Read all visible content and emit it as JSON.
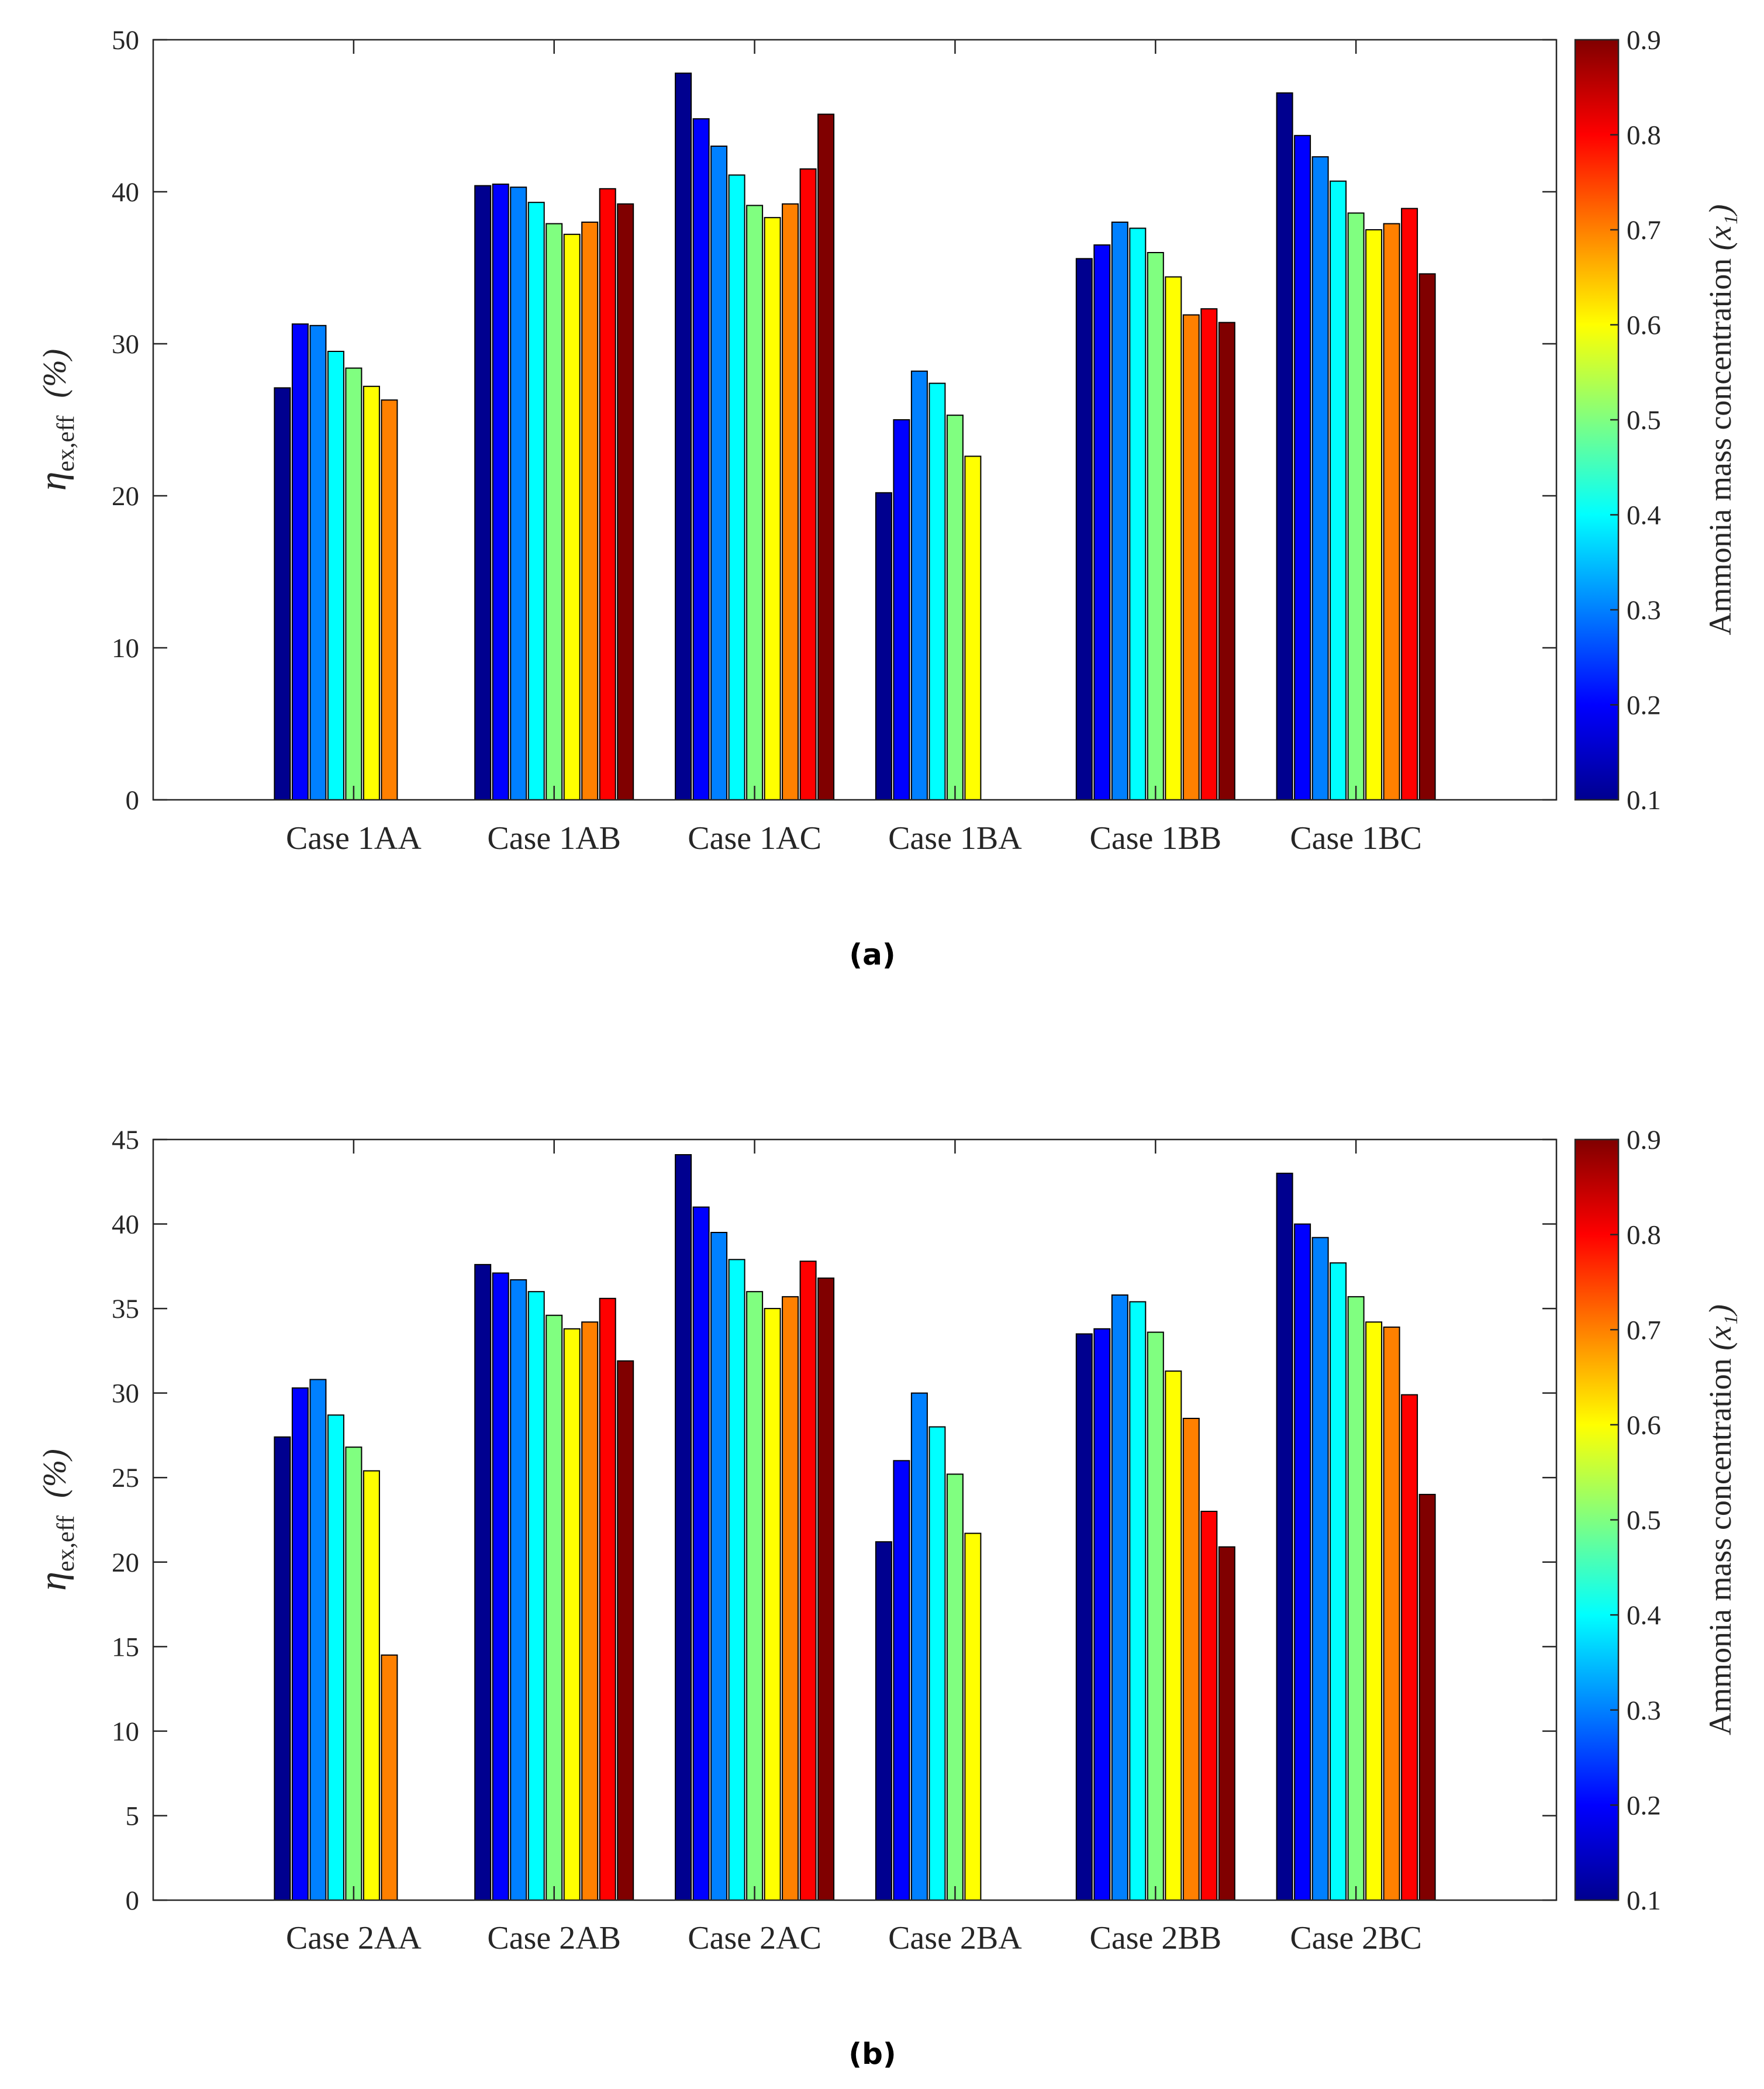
{
  "colormap": {
    "name": "jet",
    "stops": [
      "#00008f",
      "#0000ff",
      "#0080ff",
      "#00ffff",
      "#80ff80",
      "#ffff00",
      "#ff8000",
      "#ff0000",
      "#800000"
    ]
  },
  "chart_data": [
    {
      "type": "bar",
      "panel_label": "(a)",
      "ylabel_symbol": "η",
      "ylabel_subscript": "ex,eff",
      "ylabel_unit": "(%)",
      "ylim": [
        0,
        50
      ],
      "yticks": [
        0,
        10,
        20,
        30,
        40,
        50
      ],
      "categories": [
        "Case 1AA",
        "Case 1AB",
        "Case 1AC",
        "Case 1BA",
        "Case 1BB",
        "Case 1BC"
      ],
      "colorbar": {
        "label": "Ammonia mass concentration",
        "label_symbol": "(x₁)",
        "range": [
          0.1,
          0.9
        ],
        "ticks": [
          "0.1",
          "0.2",
          "0.3",
          "0.4",
          "0.5",
          "0.6",
          "0.7",
          "0.8",
          "0.9"
        ]
      },
      "series": [
        {
          "name": "x1 = 0.1",
          "values": [
            27.1,
            40.4,
            47.8,
            20.2,
            35.6,
            46.5
          ]
        },
        {
          "name": "x1 = 0.2",
          "values": [
            31.3,
            40.5,
            44.8,
            25.0,
            36.5,
            43.7
          ]
        },
        {
          "name": "x1 = 0.3",
          "values": [
            31.2,
            40.3,
            43.0,
            28.2,
            38.0,
            42.3
          ]
        },
        {
          "name": "x1 = 0.4",
          "values": [
            29.5,
            39.3,
            41.1,
            27.4,
            37.6,
            40.7
          ]
        },
        {
          "name": "x1 = 0.5",
          "values": [
            28.4,
            37.9,
            39.1,
            25.3,
            36.0,
            38.6
          ]
        },
        {
          "name": "x1 = 0.6",
          "values": [
            27.2,
            37.2,
            38.3,
            22.6,
            34.4,
            37.5
          ]
        },
        {
          "name": "x1 = 0.7",
          "values": [
            26.3,
            38.0,
            39.2,
            0,
            31.9,
            37.9
          ]
        },
        {
          "name": "x1 = 0.8",
          "values": [
            0,
            40.2,
            41.5,
            0,
            32.3,
            38.9
          ]
        },
        {
          "name": "x1 = 0.9",
          "values": [
            0,
            39.2,
            45.1,
            0,
            31.4,
            34.6
          ]
        }
      ]
    },
    {
      "type": "bar",
      "panel_label": "(b)",
      "ylabel_symbol": "η",
      "ylabel_subscript": "ex,eff",
      "ylabel_unit": "(%)",
      "ylim": [
        0,
        45
      ],
      "yticks": [
        0,
        5,
        10,
        15,
        20,
        25,
        30,
        35,
        40,
        45
      ],
      "categories": [
        "Case 2AA",
        "Case 2AB",
        "Case 2AC",
        "Case 2BA",
        "Case 2BB",
        "Case 2BC"
      ],
      "colorbar": {
        "label": "Ammonia mass concentration",
        "label_symbol": "(x₁)",
        "range": [
          0.1,
          0.9
        ],
        "ticks": [
          "0.1",
          "0.2",
          "0.3",
          "0.4",
          "0.5",
          "0.6",
          "0.7",
          "0.8",
          "0.9"
        ]
      },
      "series": [
        {
          "name": "x1 = 0.1",
          "values": [
            27.4,
            37.6,
            44.1,
            21.2,
            33.5,
            43.0
          ]
        },
        {
          "name": "x1 = 0.2",
          "values": [
            30.3,
            37.1,
            41.0,
            26.0,
            33.8,
            40.0
          ]
        },
        {
          "name": "x1 = 0.3",
          "values": [
            30.8,
            36.7,
            39.5,
            30.0,
            35.8,
            39.2
          ]
        },
        {
          "name": "x1 = 0.4",
          "values": [
            28.7,
            36.0,
            37.9,
            28.0,
            35.4,
            37.7
          ]
        },
        {
          "name": "x1 = 0.5",
          "values": [
            26.8,
            34.6,
            36.0,
            25.2,
            33.6,
            35.7
          ]
        },
        {
          "name": "x1 = 0.6",
          "values": [
            25.4,
            33.8,
            35.0,
            21.7,
            31.3,
            34.2
          ]
        },
        {
          "name": "x1 = 0.7",
          "values": [
            14.5,
            34.2,
            35.7,
            0,
            28.5,
            33.9
          ]
        },
        {
          "name": "x1 = 0.8",
          "values": [
            0,
            35.6,
            37.8,
            0,
            23.0,
            29.9
          ]
        },
        {
          "name": "x1 = 0.9",
          "values": [
            0,
            31.9,
            36.8,
            0,
            20.9,
            24.0
          ]
        }
      ]
    }
  ]
}
